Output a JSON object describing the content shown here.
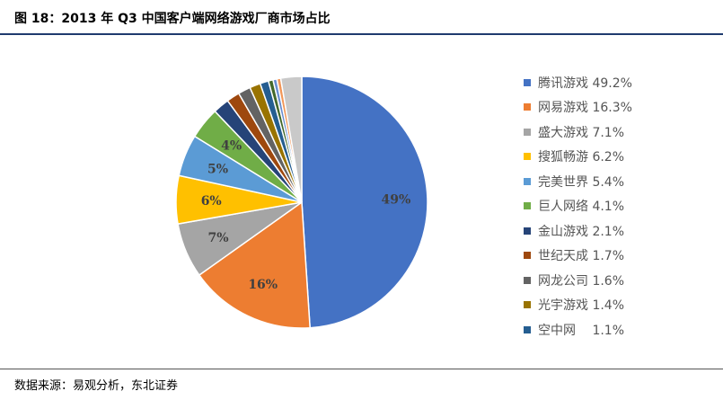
{
  "header": {
    "title": "图 18：2013 年 Q3 中国客户端网络游戏厂商市场占比"
  },
  "footer": {
    "source": "数据来源：易观分析，东北证券"
  },
  "chart_data": {
    "type": "pie",
    "title": "图 18：2013 年 Q3 中国客户端网络游戏厂商市场占比",
    "legend_position": "right",
    "start_angle": "top",
    "direction": "clockwise",
    "slices": [
      {
        "name": "腾讯游戏",
        "value": 49.2,
        "legend_label": "49.2%",
        "data_label": "49%",
        "color": "#4472C4"
      },
      {
        "name": "网易游戏",
        "value": 16.3,
        "legend_label": "16.3%",
        "data_label": "16%",
        "color": "#ED7D31"
      },
      {
        "name": "盛大游戏",
        "value": 7.1,
        "legend_label": "7.1%",
        "data_label": "7%",
        "color": "#A5A5A5"
      },
      {
        "name": "搜狐畅游",
        "value": 6.2,
        "legend_label": "6.2%",
        "data_label": "6%",
        "color": "#FFC000"
      },
      {
        "name": "完美世界",
        "value": 5.4,
        "legend_label": "5.4%",
        "data_label": "5%",
        "color": "#5B9BD5"
      },
      {
        "name": "巨人网络",
        "value": 4.1,
        "legend_label": "4.1%",
        "data_label": "4%",
        "color": "#70AD47"
      },
      {
        "name": "金山游戏",
        "value": 2.1,
        "legend_label": "2.1%",
        "data_label": "",
        "color": "#264478"
      },
      {
        "name": "世纪天成",
        "value": 1.7,
        "legend_label": "1.7%",
        "data_label": "",
        "color": "#9E480E"
      },
      {
        "name": "网龙公司",
        "value": 1.6,
        "legend_label": "1.6%",
        "data_label": "",
        "color": "#636363"
      },
      {
        "name": "光宇游戏",
        "value": 1.4,
        "legend_label": "1.4%",
        "data_label": "",
        "color": "#997300"
      },
      {
        "name": "空中网",
        "value": 1.1,
        "legend_label": "1.1%",
        "data_label": "",
        "color": "#255E91"
      },
      {
        "name": "",
        "value": 0.6,
        "legend_label": "",
        "data_label": "",
        "color": "#43682B"
      },
      {
        "name": "",
        "value": 0.5,
        "legend_label": "",
        "data_label": "",
        "color": "#698ED0"
      },
      {
        "name": "",
        "value": 0.5,
        "legend_label": "",
        "data_label": "",
        "color": "#F1975A"
      },
      {
        "name": "",
        "value": 2.7,
        "legend_label": "",
        "data_label": "",
        "color": "#C9C9C9"
      }
    ]
  }
}
